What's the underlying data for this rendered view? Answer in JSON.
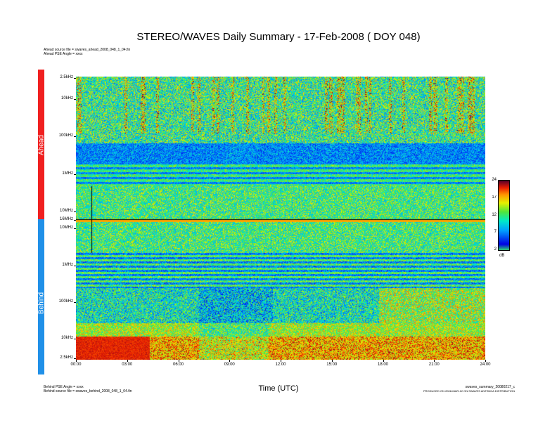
{
  "title": "STEREO/WAVES Daily Summary - 17-Feb-2008 ( DOY 048)",
  "header_notes": {
    "line1": "Ahead source file = swaves_ahead_2008_048_1_04.fin",
    "line2": "Ahead PSE Angle = xxxx"
  },
  "footer_notes": {
    "left_line1": "Behind PSE Angle = xxxx",
    "left_line2": "Behind source file = swaves_behind_2008_048_1_04.fin",
    "right_line1": "swaves_summary_20080217_c",
    "right_line2": "PRODUCED ON 2008-MAR-12 ON SWAVES ANTENNA DISTRIBUTION"
  },
  "colors": {
    "ahead_bar": "#f02020",
    "behind_bar": "#2090e8"
  },
  "chart_data": {
    "type": "heatmap",
    "title": "STEREO/WAVES Daily Summary - 17-Feb-2008 ( DOY 048)",
    "xlabel": "Time (UTC)",
    "x_ticks": [
      "00:00",
      "03:00",
      "06:00",
      "09:00",
      "12:00",
      "15:00",
      "18:00",
      "21:00",
      "24:00"
    ],
    "xlim": [
      0,
      24
    ],
    "panels": [
      {
        "name": "Ahead",
        "y_ticks": [
          "2.5kHz",
          "10kHz",
          "100kHz",
          "1MHz",
          "10MHz",
          "16MHz"
        ],
        "y_scale": "log"
      },
      {
        "name": "Behind",
        "y_ticks": [
          "16MHz",
          "10MHz",
          "1MHz",
          "100kHz",
          "10kHz",
          "2.5kHz"
        ],
        "y_scale": "log"
      }
    ],
    "colorbar": {
      "unit": "dB",
      "ticks": [
        "24",
        "17",
        "12",
        "7",
        "2"
      ],
      "range": [
        2,
        24
      ]
    }
  }
}
